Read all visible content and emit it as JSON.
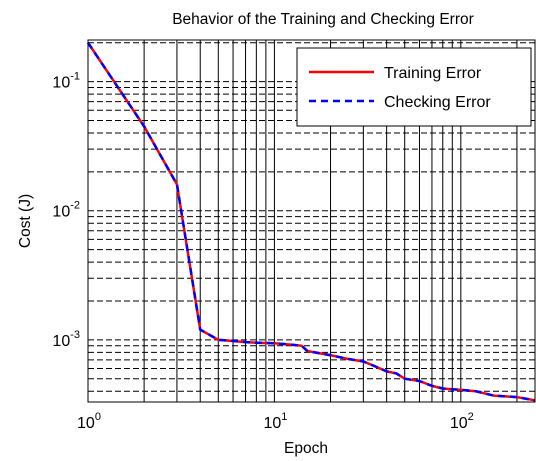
{
  "chart_data": {
    "type": "line",
    "title": "Behavior of the Training and Checking Error",
    "xlabel": "Epoch",
    "ylabel": "Cost (J)",
    "x_scale": "log",
    "y_scale": "log",
    "xlim": [
      1,
      250
    ],
    "ylim": [
      0.00033,
      0.21
    ],
    "grid": true,
    "legend_position": "top-right",
    "x_ticks": [
      {
        "base": "10",
        "exp": "0"
      },
      {
        "base": "10",
        "exp": "1"
      },
      {
        "base": "10",
        "exp": "2"
      }
    ],
    "y_ticks": [
      {
        "base": "10",
        "exp": "-1"
      },
      {
        "base": "10",
        "exp": "-2"
      },
      {
        "base": "10",
        "exp": "-3"
      }
    ],
    "x": [
      1,
      2,
      3,
      4,
      5,
      6,
      7,
      8,
      10,
      12,
      14,
      15,
      20,
      25,
      30,
      35,
      40,
      45,
      50,
      60,
      70,
      80,
      100,
      120,
      150,
      200,
      250
    ],
    "series": [
      {
        "name": "Training Error",
        "color": "#ff0000",
        "style": "solid",
        "values": [
          0.2,
          0.045,
          0.016,
          0.0012,
          0.001,
          0.00098,
          0.00096,
          0.00095,
          0.00094,
          0.00092,
          0.0009,
          0.00082,
          0.00076,
          0.00071,
          0.00068,
          0.00062,
          0.00057,
          0.00055,
          0.0005,
          0.00048,
          0.00044,
          0.00042,
          0.00041,
          0.0004,
          0.00037,
          0.00036,
          0.00034
        ]
      },
      {
        "name": "Checking Error",
        "color": "#0000ff",
        "style": "dashed",
        "values": [
          0.2,
          0.045,
          0.016,
          0.0012,
          0.001,
          0.00098,
          0.00096,
          0.00095,
          0.00094,
          0.00092,
          0.0009,
          0.00082,
          0.00076,
          0.00071,
          0.00068,
          0.00062,
          0.00057,
          0.00055,
          0.0005,
          0.00048,
          0.00044,
          0.00042,
          0.00041,
          0.0004,
          0.00037,
          0.00036,
          0.00034
        ]
      }
    ]
  }
}
